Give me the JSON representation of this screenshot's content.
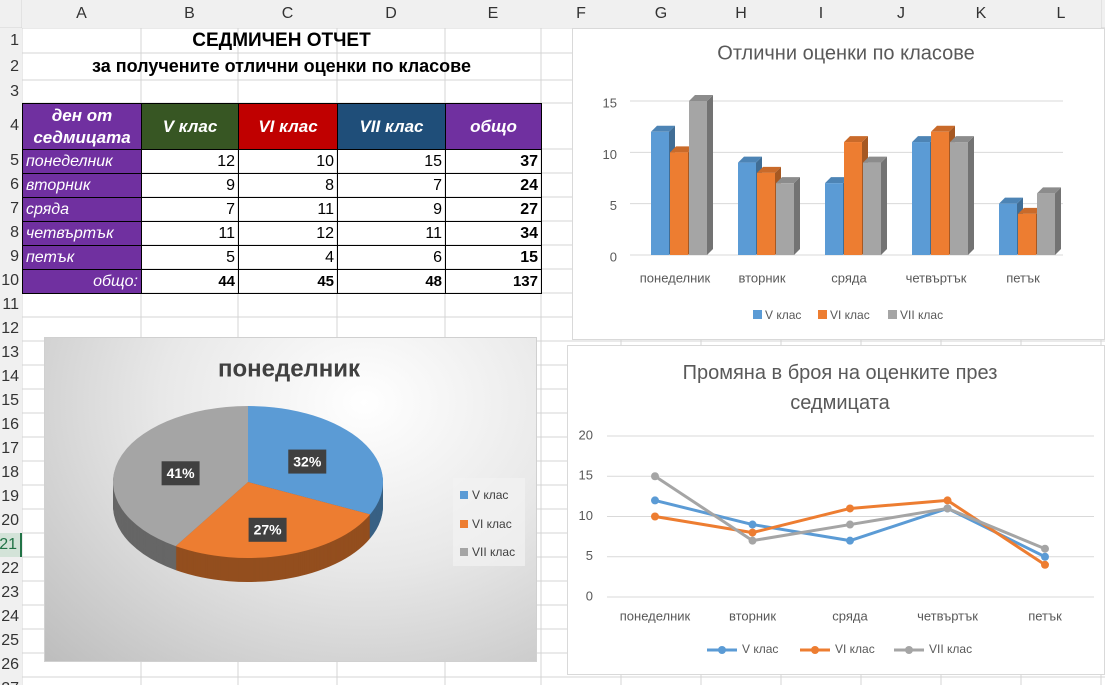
{
  "sheet": {
    "columns": [
      "A",
      "B",
      "C",
      "D",
      "E",
      "F",
      "G",
      "H",
      "I",
      "J",
      "K",
      "L"
    ],
    "rows": [
      1,
      2,
      3,
      4,
      5,
      6,
      7,
      8,
      9,
      10,
      11,
      12,
      13,
      14,
      15,
      16,
      17,
      18,
      19,
      20,
      21,
      22,
      23,
      24,
      25,
      26,
      27
    ],
    "active_row": 21,
    "title": "СЕДМИЧЕН ОТЧЕТ",
    "subtitle": "за получените отлични оценки по класове",
    "table": {
      "header": [
        "ден от седмицата",
        "V клас",
        "VI клас",
        "VII клас",
        "общо"
      ],
      "header_colors": [
        "#7030a0",
        "#375623",
        "#c00000",
        "#1f4e79",
        "#7030a0"
      ],
      "label_color": "#7030a0",
      "rows": [
        [
          "понеделник",
          12,
          10,
          15,
          37
        ],
        [
          "вторник",
          9,
          8,
          7,
          24
        ],
        [
          "сряда",
          7,
          11,
          9,
          27
        ],
        [
          "четвъртък",
          11,
          12,
          11,
          34
        ],
        [
          "петък",
          5,
          4,
          6,
          15
        ]
      ],
      "total_label": "общо:",
      "totals": [
        44,
        45,
        48,
        137
      ]
    }
  },
  "chart_data": [
    {
      "type": "bar3d",
      "title": "Отлични оценки по класове",
      "categories": [
        "понеделник",
        "вторник",
        "сряда",
        "четвъртък",
        "петък"
      ],
      "series": [
        {
          "name": "V клас",
          "color": "#5b9bd5",
          "values": [
            12,
            9,
            7,
            11,
            5
          ]
        },
        {
          "name": "VI клас",
          "color": "#ed7d31",
          "values": [
            10,
            8,
            11,
            12,
            4
          ]
        },
        {
          "name": "VII клас",
          "color": "#a5a5a5",
          "values": [
            15,
            7,
            9,
            11,
            6
          ]
        }
      ],
      "ylim": [
        0,
        15
      ],
      "yticks": [
        0,
        5,
        10,
        15
      ],
      "grid": true,
      "legend": "bottom"
    },
    {
      "type": "pie3d",
      "title": "понеделник",
      "categories": [
        "V клас",
        "VI клас",
        "VII клас"
      ],
      "values": [
        32,
        27,
        41
      ],
      "value_labels": [
        "32%",
        "27%",
        "41%"
      ],
      "colors": [
        "#5b9bd5",
        "#ed7d31",
        "#a5a5a5"
      ],
      "legend": "right"
    },
    {
      "type": "line",
      "title": "Промяна в броя на оценките през седмицата",
      "categories": [
        "понеделник",
        "вторник",
        "сряда",
        "четвъртък",
        "петък"
      ],
      "series": [
        {
          "name": "V клас",
          "color": "#5b9bd5",
          "values": [
            12,
            9,
            7,
            11,
            5
          ]
        },
        {
          "name": "VI клас",
          "color": "#ed7d31",
          "values": [
            10,
            8,
            11,
            12,
            4
          ]
        },
        {
          "name": "VII клас",
          "color": "#a5a5a5",
          "values": [
            15,
            7,
            9,
            11,
            6
          ]
        }
      ],
      "ylim": [
        0,
        20
      ],
      "yticks": [
        0,
        5,
        10,
        15,
        20
      ],
      "grid": true,
      "legend": "bottom"
    }
  ]
}
